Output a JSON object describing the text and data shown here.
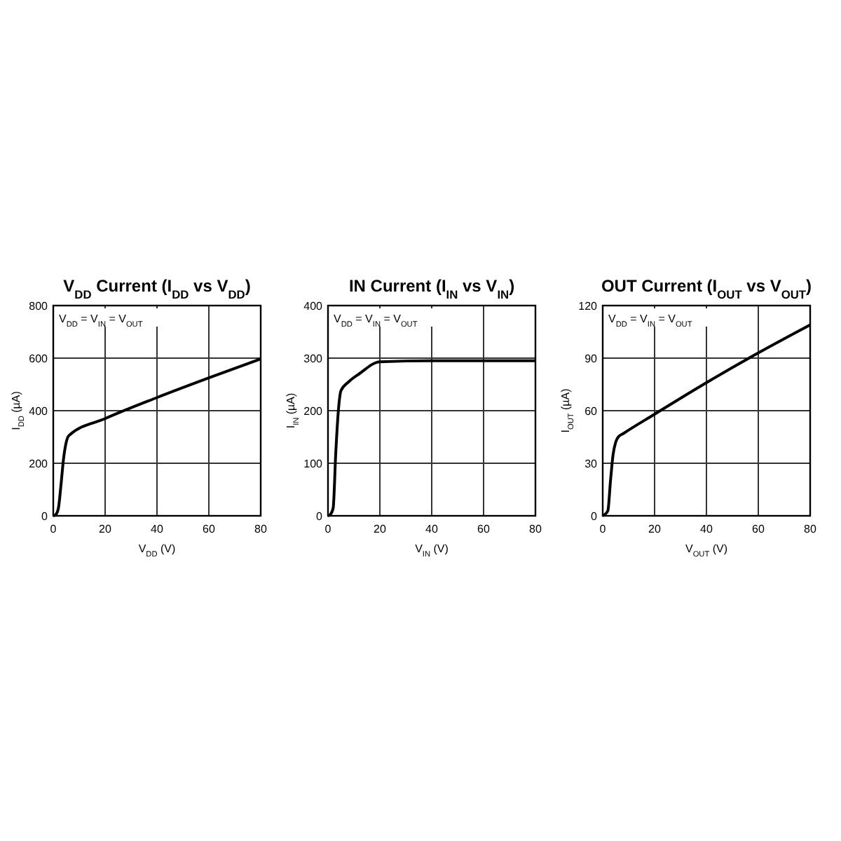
{
  "chart_data": [
    {
      "type": "line",
      "title": "V$_{DD}$ Current (I$_{DD}$ vs V$_{DD}$)",
      "xlabel": "V$_{DD}$ (V)",
      "ylabel": "I$_{DD}$ (µA)",
      "annotations": [
        "V$_{DD}$ = V$_{IN}$ = V$_{OUT}$"
      ],
      "xlim": [
        0,
        80
      ],
      "xticks": [
        0,
        20,
        40,
        60,
        80
      ],
      "ylim": [
        0,
        800
      ],
      "yticks": [
        0,
        200,
        400,
        600,
        800
      ],
      "grid": true,
      "series": [
        {
          "color": "#000000",
          "x": [
            0,
            1,
            2,
            3,
            4,
            5,
            6,
            20,
            40,
            60,
            80
          ],
          "values": [
            0,
            5,
            30,
            120,
            220,
            280,
            305,
            370,
            450,
            525,
            597
          ]
        }
      ]
    },
    {
      "type": "line",
      "title": "IN Current (I$_{IN}$ vs V$_{IN}$)",
      "xlabel": "V$_{IN}$ (V)",
      "ylabel": "I$_{IN}$ (µA)",
      "annotations": [
        "V$_{DD}$ = V$_{IN}$ = V$_{OUT}$"
      ],
      "xlim": [
        0,
        80
      ],
      "xticks": [
        0,
        20,
        40,
        60,
        80
      ],
      "ylim": [
        0,
        400
      ],
      "yticks": [
        0,
        100,
        200,
        300,
        400
      ],
      "grid": true,
      "series": [
        {
          "color": "#000000",
          "x": [
            0,
            1,
            2,
            3,
            4,
            5,
            8,
            12,
            20,
            40,
            60,
            80
          ],
          "values": [
            0,
            3,
            15,
            120,
            200,
            238,
            255,
            270,
            293,
            295,
            295,
            295
          ]
        }
      ]
    },
    {
      "type": "line",
      "title": "OUT Current (I$_{OUT}$ vs V$_{OUT}$)",
      "xlabel": "V$_{OUT}$ (V)",
      "ylabel": "I$_{OUT}$ (µA)",
      "annotations": [
        "V$_{DD}$ = V$_{IN}$ = V$_{OUT}$"
      ],
      "xlim": [
        0,
        80
      ],
      "xticks": [
        0,
        20,
        40,
        60,
        80
      ],
      "ylim": [
        0,
        120
      ],
      "yticks": [
        0,
        30,
        60,
        90,
        120
      ],
      "grid": true,
      "series": [
        {
          "color": "#000000",
          "x": [
            0,
            1,
            2,
            3,
            4,
            5,
            6,
            8,
            20,
            40,
            60,
            80
          ],
          "values": [
            0,
            1,
            3,
            20,
            35,
            42,
            45,
            47,
            58,
            76,
            93,
            109
          ]
        }
      ]
    }
  ]
}
